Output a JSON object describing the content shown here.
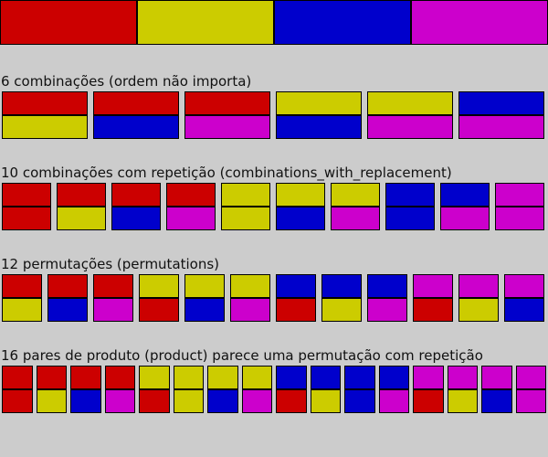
{
  "colors": {
    "red": "#cc0000",
    "yellow": "#cccc00",
    "blue": "#0000cc",
    "magenta": "#cc00cc"
  },
  "palette": [
    "red",
    "yellow",
    "blue",
    "magenta"
  ],
  "sections": [
    {
      "id": "combinations",
      "title": "6 combinações (ordem não importa)",
      "pairs": [
        [
          "red",
          "yellow"
        ],
        [
          "red",
          "blue"
        ],
        [
          "red",
          "magenta"
        ],
        [
          "yellow",
          "blue"
        ],
        [
          "yellow",
          "magenta"
        ],
        [
          "blue",
          "magenta"
        ]
      ]
    },
    {
      "id": "combinations-with-replacement",
      "title": "10 combinações com repetição (combinations_with_replacement)",
      "pairs": [
        [
          "red",
          "red"
        ],
        [
          "red",
          "yellow"
        ],
        [
          "red",
          "blue"
        ],
        [
          "red",
          "magenta"
        ],
        [
          "yellow",
          "yellow"
        ],
        [
          "yellow",
          "blue"
        ],
        [
          "yellow",
          "magenta"
        ],
        [
          "blue",
          "blue"
        ],
        [
          "blue",
          "magenta"
        ],
        [
          "magenta",
          "magenta"
        ]
      ]
    },
    {
      "id": "permutations",
      "title": "12 permutações (permutations)",
      "pairs": [
        [
          "red",
          "yellow"
        ],
        [
          "red",
          "blue"
        ],
        [
          "red",
          "magenta"
        ],
        [
          "yellow",
          "red"
        ],
        [
          "yellow",
          "blue"
        ],
        [
          "yellow",
          "magenta"
        ],
        [
          "blue",
          "red"
        ],
        [
          "blue",
          "yellow"
        ],
        [
          "blue",
          "magenta"
        ],
        [
          "magenta",
          "red"
        ],
        [
          "magenta",
          "yellow"
        ],
        [
          "magenta",
          "blue"
        ]
      ]
    },
    {
      "id": "product",
      "title": "16 pares de produto (product) parece uma permutação com repetição",
      "pairs": [
        [
          "red",
          "red"
        ],
        [
          "red",
          "yellow"
        ],
        [
          "red",
          "blue"
        ],
        [
          "red",
          "magenta"
        ],
        [
          "yellow",
          "red"
        ],
        [
          "yellow",
          "yellow"
        ],
        [
          "yellow",
          "blue"
        ],
        [
          "yellow",
          "magenta"
        ],
        [
          "blue",
          "red"
        ],
        [
          "blue",
          "yellow"
        ],
        [
          "blue",
          "blue"
        ],
        [
          "blue",
          "magenta"
        ],
        [
          "magenta",
          "red"
        ],
        [
          "magenta",
          "yellow"
        ],
        [
          "magenta",
          "blue"
        ],
        [
          "magenta",
          "magenta"
        ]
      ]
    }
  ]
}
